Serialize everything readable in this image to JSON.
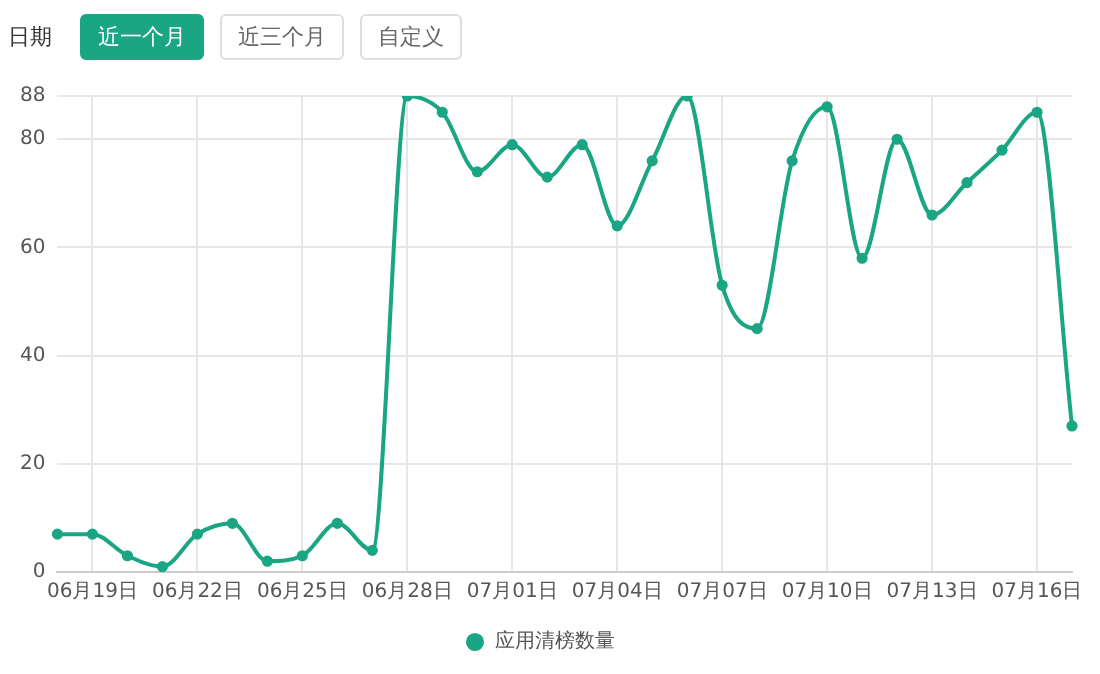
{
  "chart_data": {
    "type": "line",
    "categories": [
      null,
      "06月19日",
      null,
      null,
      "06月22日",
      null,
      null,
      "06月25日",
      null,
      null,
      "06月28日",
      null,
      null,
      "07月01日",
      null,
      null,
      "07月04日",
      null,
      null,
      "07月07日",
      null,
      null,
      "07月10日",
      null,
      null,
      "07月13日",
      null,
      null,
      "07月16日",
      null
    ],
    "series": [
      {
        "name": "应用清榜数量",
        "color": "#1aa583",
        "values": [
          7,
          7,
          3,
          1,
          7,
          9,
          2,
          3,
          9,
          4,
          88,
          85,
          74,
          79,
          73,
          79,
          64,
          76,
          88,
          53,
          45,
          76,
          86,
          58,
          80,
          66,
          72,
          78,
          85,
          27
        ]
      }
    ],
    "ylim": [
      0,
      88
    ],
    "yticks": [
      0,
      20,
      40,
      60,
      80,
      88
    ],
    "grid": true,
    "legend": "bottom",
    "marker": "circle",
    "line_style": "solid",
    "annotations": [
      "日期",
      "近一个月",
      "近三个月",
      "自定义"
    ]
  }
}
